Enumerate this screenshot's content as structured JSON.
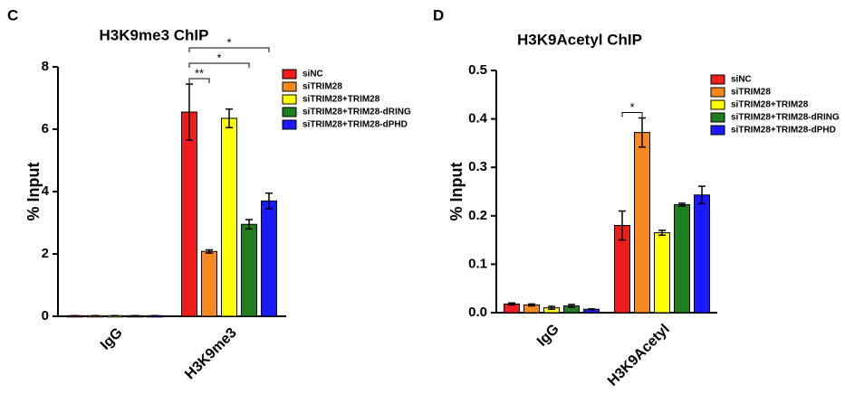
{
  "chart_data": [
    {
      "type": "bar",
      "panel_label": "C",
      "title": "H3K9me3 ChIP",
      "y_label": "% Input",
      "categories": [
        "IgG",
        "H3K9me3"
      ],
      "series": [
        {
          "name": "siNC",
          "color": "#ee1c1c",
          "values": [
            0.02,
            6.55
          ],
          "errors": [
            0,
            0.9
          ]
        },
        {
          "name": "siTRIM28",
          "color": "#f7871f",
          "values": [
            0.02,
            2.08
          ],
          "errors": [
            0,
            0.05
          ]
        },
        {
          "name": "siTRIM28+TRIM28",
          "color": "#ffff00",
          "values": [
            0.02,
            6.35
          ],
          "errors": [
            0,
            0.3
          ]
        },
        {
          "name": "siTRIM28+TRIM28-dRING",
          "color": "#1f7f1f",
          "values": [
            0.02,
            2.95
          ],
          "errors": [
            0,
            0.15
          ]
        },
        {
          "name": "siTRIM28+TRIM28-dPHD",
          "color": "#1a1aff",
          "values": [
            0.02,
            3.7
          ],
          "errors": [
            0,
            0.25
          ]
        }
      ],
      "ylim": [
        0,
        8
      ],
      "yticks": [
        0,
        2,
        4,
        6,
        8
      ],
      "legend": "upper right",
      "annotations": [
        {
          "label": "**",
          "category": 1,
          "pair": [
            0,
            1
          ]
        },
        {
          "label": "*",
          "category": 1,
          "pair": [
            0,
            3
          ]
        },
        {
          "label": "*",
          "category": 1,
          "pair": [
            0,
            4
          ]
        }
      ]
    },
    {
      "type": "bar",
      "panel_label": "D",
      "title": "H3K9Acetyl ChIP",
      "y_label": "% Input",
      "categories": [
        "IgG",
        "H3K9Acetyl"
      ],
      "series": [
        {
          "name": "siNC",
          "color": "#ee1c1c",
          "values": [
            0.018,
            0.18
          ],
          "errors": [
            0.002,
            0.03
          ]
        },
        {
          "name": "siTRIM28",
          "color": "#f7871f",
          "values": [
            0.016,
            0.372
          ],
          "errors": [
            0.002,
            0.03
          ]
        },
        {
          "name": "siTRIM28+TRIM28",
          "color": "#ffff00",
          "values": [
            0.01,
            0.165
          ],
          "errors": [
            0.003,
            0.005
          ]
        },
        {
          "name": "siTRIM28+TRIM28-dRING",
          "color": "#1f7f1f",
          "values": [
            0.014,
            0.223
          ],
          "errors": [
            0.003,
            0.003
          ]
        },
        {
          "name": "siTRIM28+TRIM28-dPHD",
          "color": "#1a1aff",
          "values": [
            0.007,
            0.243
          ],
          "errors": [
            0.001,
            0.018
          ]
        }
      ],
      "ylim": [
        0,
        0.5
      ],
      "yticks": [
        {
          "value": 0,
          "label": "0.0"
        },
        0.1,
        0.2,
        0.3,
        0.4,
        0.5
      ],
      "legend": "upper right",
      "annotations": [
        {
          "label": "*",
          "category": 1,
          "pair": [
            0,
            1
          ]
        }
      ]
    }
  ]
}
